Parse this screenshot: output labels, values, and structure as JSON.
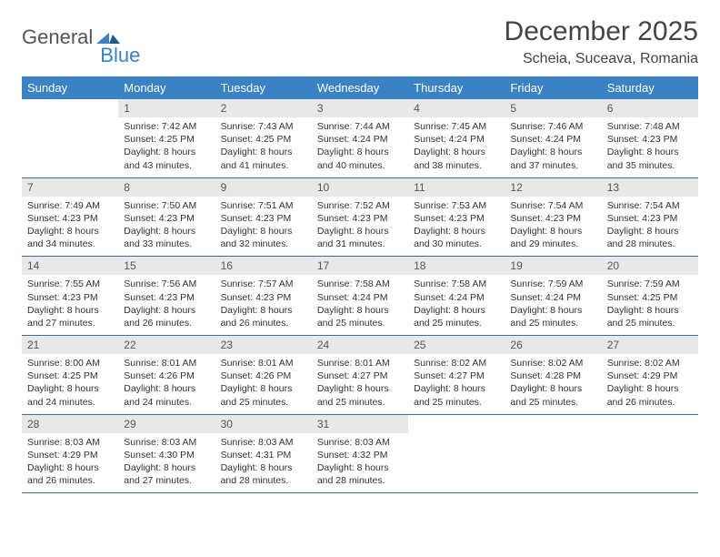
{
  "logo": {
    "part1": "General",
    "part2": "Blue"
  },
  "title": "December 2025",
  "location": "Scheia, Suceava, Romania",
  "colors": {
    "header_bg": "#3b82c4",
    "header_text": "#ffffff",
    "daynum_bg": "#e8e8e8",
    "row_border": "#3b6fa0",
    "body_text": "#333333",
    "logo_gray": "#555555",
    "logo_blue": "#3b82c4"
  },
  "day_headers": [
    "Sunday",
    "Monday",
    "Tuesday",
    "Wednesday",
    "Thursday",
    "Friday",
    "Saturday"
  ],
  "weeks": [
    [
      {
        "n": "",
        "sunrise": "",
        "sunset": "",
        "daylight": ""
      },
      {
        "n": "1",
        "sunrise": "Sunrise: 7:42 AM",
        "sunset": "Sunset: 4:25 PM",
        "daylight": "Daylight: 8 hours and 43 minutes."
      },
      {
        "n": "2",
        "sunrise": "Sunrise: 7:43 AM",
        "sunset": "Sunset: 4:25 PM",
        "daylight": "Daylight: 8 hours and 41 minutes."
      },
      {
        "n": "3",
        "sunrise": "Sunrise: 7:44 AM",
        "sunset": "Sunset: 4:24 PM",
        "daylight": "Daylight: 8 hours and 40 minutes."
      },
      {
        "n": "4",
        "sunrise": "Sunrise: 7:45 AM",
        "sunset": "Sunset: 4:24 PM",
        "daylight": "Daylight: 8 hours and 38 minutes."
      },
      {
        "n": "5",
        "sunrise": "Sunrise: 7:46 AM",
        "sunset": "Sunset: 4:24 PM",
        "daylight": "Daylight: 8 hours and 37 minutes."
      },
      {
        "n": "6",
        "sunrise": "Sunrise: 7:48 AM",
        "sunset": "Sunset: 4:23 PM",
        "daylight": "Daylight: 8 hours and 35 minutes."
      }
    ],
    [
      {
        "n": "7",
        "sunrise": "Sunrise: 7:49 AM",
        "sunset": "Sunset: 4:23 PM",
        "daylight": "Daylight: 8 hours and 34 minutes."
      },
      {
        "n": "8",
        "sunrise": "Sunrise: 7:50 AM",
        "sunset": "Sunset: 4:23 PM",
        "daylight": "Daylight: 8 hours and 33 minutes."
      },
      {
        "n": "9",
        "sunrise": "Sunrise: 7:51 AM",
        "sunset": "Sunset: 4:23 PM",
        "daylight": "Daylight: 8 hours and 32 minutes."
      },
      {
        "n": "10",
        "sunrise": "Sunrise: 7:52 AM",
        "sunset": "Sunset: 4:23 PM",
        "daylight": "Daylight: 8 hours and 31 minutes."
      },
      {
        "n": "11",
        "sunrise": "Sunrise: 7:53 AM",
        "sunset": "Sunset: 4:23 PM",
        "daylight": "Daylight: 8 hours and 30 minutes."
      },
      {
        "n": "12",
        "sunrise": "Sunrise: 7:54 AM",
        "sunset": "Sunset: 4:23 PM",
        "daylight": "Daylight: 8 hours and 29 minutes."
      },
      {
        "n": "13",
        "sunrise": "Sunrise: 7:54 AM",
        "sunset": "Sunset: 4:23 PM",
        "daylight": "Daylight: 8 hours and 28 minutes."
      }
    ],
    [
      {
        "n": "14",
        "sunrise": "Sunrise: 7:55 AM",
        "sunset": "Sunset: 4:23 PM",
        "daylight": "Daylight: 8 hours and 27 minutes."
      },
      {
        "n": "15",
        "sunrise": "Sunrise: 7:56 AM",
        "sunset": "Sunset: 4:23 PM",
        "daylight": "Daylight: 8 hours and 26 minutes."
      },
      {
        "n": "16",
        "sunrise": "Sunrise: 7:57 AM",
        "sunset": "Sunset: 4:23 PM",
        "daylight": "Daylight: 8 hours and 26 minutes."
      },
      {
        "n": "17",
        "sunrise": "Sunrise: 7:58 AM",
        "sunset": "Sunset: 4:24 PM",
        "daylight": "Daylight: 8 hours and 25 minutes."
      },
      {
        "n": "18",
        "sunrise": "Sunrise: 7:58 AM",
        "sunset": "Sunset: 4:24 PM",
        "daylight": "Daylight: 8 hours and 25 minutes."
      },
      {
        "n": "19",
        "sunrise": "Sunrise: 7:59 AM",
        "sunset": "Sunset: 4:24 PM",
        "daylight": "Daylight: 8 hours and 25 minutes."
      },
      {
        "n": "20",
        "sunrise": "Sunrise: 7:59 AM",
        "sunset": "Sunset: 4:25 PM",
        "daylight": "Daylight: 8 hours and 25 minutes."
      }
    ],
    [
      {
        "n": "21",
        "sunrise": "Sunrise: 8:00 AM",
        "sunset": "Sunset: 4:25 PM",
        "daylight": "Daylight: 8 hours and 24 minutes."
      },
      {
        "n": "22",
        "sunrise": "Sunrise: 8:01 AM",
        "sunset": "Sunset: 4:26 PM",
        "daylight": "Daylight: 8 hours and 24 minutes."
      },
      {
        "n": "23",
        "sunrise": "Sunrise: 8:01 AM",
        "sunset": "Sunset: 4:26 PM",
        "daylight": "Daylight: 8 hours and 25 minutes."
      },
      {
        "n": "24",
        "sunrise": "Sunrise: 8:01 AM",
        "sunset": "Sunset: 4:27 PM",
        "daylight": "Daylight: 8 hours and 25 minutes."
      },
      {
        "n": "25",
        "sunrise": "Sunrise: 8:02 AM",
        "sunset": "Sunset: 4:27 PM",
        "daylight": "Daylight: 8 hours and 25 minutes."
      },
      {
        "n": "26",
        "sunrise": "Sunrise: 8:02 AM",
        "sunset": "Sunset: 4:28 PM",
        "daylight": "Daylight: 8 hours and 25 minutes."
      },
      {
        "n": "27",
        "sunrise": "Sunrise: 8:02 AM",
        "sunset": "Sunset: 4:29 PM",
        "daylight": "Daylight: 8 hours and 26 minutes."
      }
    ],
    [
      {
        "n": "28",
        "sunrise": "Sunrise: 8:03 AM",
        "sunset": "Sunset: 4:29 PM",
        "daylight": "Daylight: 8 hours and 26 minutes."
      },
      {
        "n": "29",
        "sunrise": "Sunrise: 8:03 AM",
        "sunset": "Sunset: 4:30 PM",
        "daylight": "Daylight: 8 hours and 27 minutes."
      },
      {
        "n": "30",
        "sunrise": "Sunrise: 8:03 AM",
        "sunset": "Sunset: 4:31 PM",
        "daylight": "Daylight: 8 hours and 28 minutes."
      },
      {
        "n": "31",
        "sunrise": "Sunrise: 8:03 AM",
        "sunset": "Sunset: 4:32 PM",
        "daylight": "Daylight: 8 hours and 28 minutes."
      },
      {
        "n": "",
        "sunrise": "",
        "sunset": "",
        "daylight": ""
      },
      {
        "n": "",
        "sunrise": "",
        "sunset": "",
        "daylight": ""
      },
      {
        "n": "",
        "sunrise": "",
        "sunset": "",
        "daylight": ""
      }
    ]
  ]
}
